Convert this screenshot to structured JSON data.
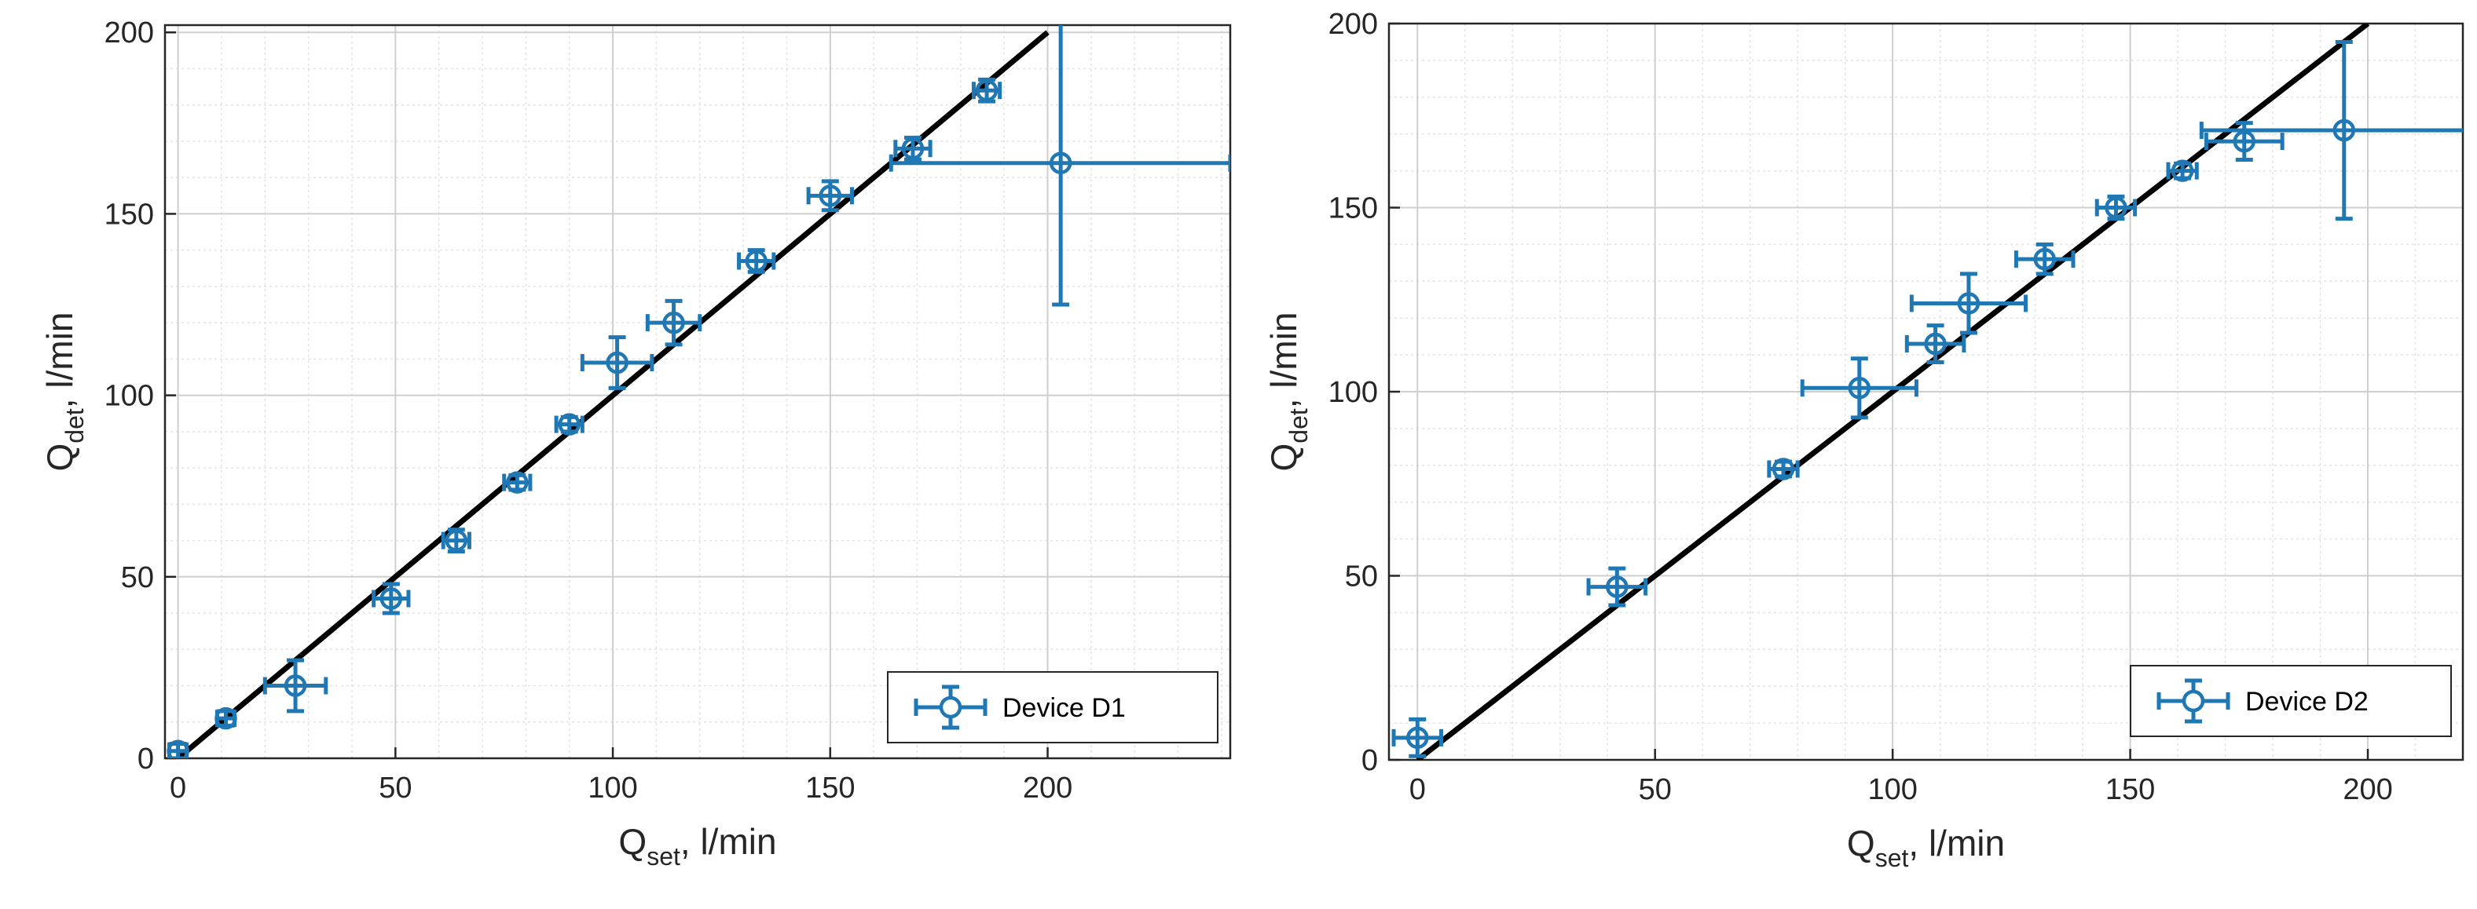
{
  "chart_data": [
    {
      "type": "scatter",
      "xlabel": {
        "main": "Q",
        "sub": "set",
        "rest": ", l/min"
      },
      "ylabel": {
        "main": "Q",
        "sub": "det",
        "rest": ", l/min"
      },
      "xlim": [
        -3,
        242
      ],
      "ylim": [
        0,
        202
      ],
      "xticks": [
        0,
        50,
        100,
        150,
        200
      ],
      "yticks": [
        0,
        50,
        100,
        150,
        200
      ],
      "grid": "major and minor",
      "legend": "bottom-right",
      "reference_line": {
        "x": [
          0,
          200
        ],
        "y": [
          0,
          200
        ],
        "color": "#000000"
      },
      "series": [
        {
          "name": "Device D1",
          "color": "#1f77b4",
          "points": [
            {
              "x": 0,
              "y": 2,
              "xerr": 2,
              "yerr": 2
            },
            {
              "x": 11,
              "y": 11,
              "xerr": 2,
              "yerr": 2
            },
            {
              "x": 27,
              "y": 20,
              "xerr": 7,
              "yerr": 7
            },
            {
              "x": 49,
              "y": 44,
              "xerr": 4,
              "yerr": 4
            },
            {
              "x": 64,
              "y": 60,
              "xerr": 3,
              "yerr": 3
            },
            {
              "x": 78,
              "y": 76,
              "xerr": 3,
              "yerr": 2
            },
            {
              "x": 90,
              "y": 92,
              "xerr": 3,
              "yerr": 2
            },
            {
              "x": 101,
              "y": 109,
              "xerr": 8,
              "yerr": 7
            },
            {
              "x": 114,
              "y": 120,
              "xerr": 6,
              "yerr": 6
            },
            {
              "x": 133,
              "y": 137,
              "xerr": 4,
              "yerr": 3
            },
            {
              "x": 150,
              "y": 155,
              "xerr": 5,
              "yerr": 4
            },
            {
              "x": 169,
              "y": 168,
              "xerr": 4,
              "yerr": 3
            },
            {
              "x": 186,
              "y": 184,
              "xerr": 3,
              "yerr": 3
            },
            {
              "x": 203,
              "y": 164,
              "xerr": 39,
              "yerr": 39
            }
          ]
        }
      ]
    },
    {
      "type": "scatter",
      "xlabel": {
        "main": "Q",
        "sub": "set",
        "rest": ", l/min"
      },
      "ylabel": {
        "main": "Q",
        "sub": "det",
        "rest": ", l/min"
      },
      "xlim": [
        -6,
        220
      ],
      "ylim": [
        0,
        200
      ],
      "xticks": [
        0,
        50,
        100,
        150,
        200
      ],
      "yticks": [
        0,
        50,
        100,
        150,
        200
      ],
      "grid": "major and minor",
      "legend": "bottom-right",
      "reference_line": {
        "x": [
          0,
          200
        ],
        "y": [
          0,
          200
        ],
        "color": "#000000"
      },
      "series": [
        {
          "name": "Device D2",
          "color": "#1f77b4",
          "points": [
            {
              "x": 0,
              "y": 6,
              "xerr": 5,
              "yerr": 5
            },
            {
              "x": 42,
              "y": 47,
              "xerr": 6,
              "yerr": 5
            },
            {
              "x": 77,
              "y": 79,
              "xerr": 3,
              "yerr": 2
            },
            {
              "x": 93,
              "y": 101,
              "xerr": 12,
              "yerr": 8
            },
            {
              "x": 109,
              "y": 113,
              "xerr": 6,
              "yerr": 5
            },
            {
              "x": 116,
              "y": 124,
              "xerr": 12,
              "yerr": 8
            },
            {
              "x": 132,
              "y": 136,
              "xerr": 6,
              "yerr": 4
            },
            {
              "x": 147,
              "y": 150,
              "xerr": 4,
              "yerr": 3
            },
            {
              "x": 161,
              "y": 160,
              "xerr": 3,
              "yerr": 2
            },
            {
              "x": 174,
              "y": 168,
              "xerr": 8,
              "yerr": 5
            },
            {
              "x": 195,
              "y": 171,
              "xerr": 30,
              "yerr": 24
            }
          ]
        }
      ]
    }
  ]
}
